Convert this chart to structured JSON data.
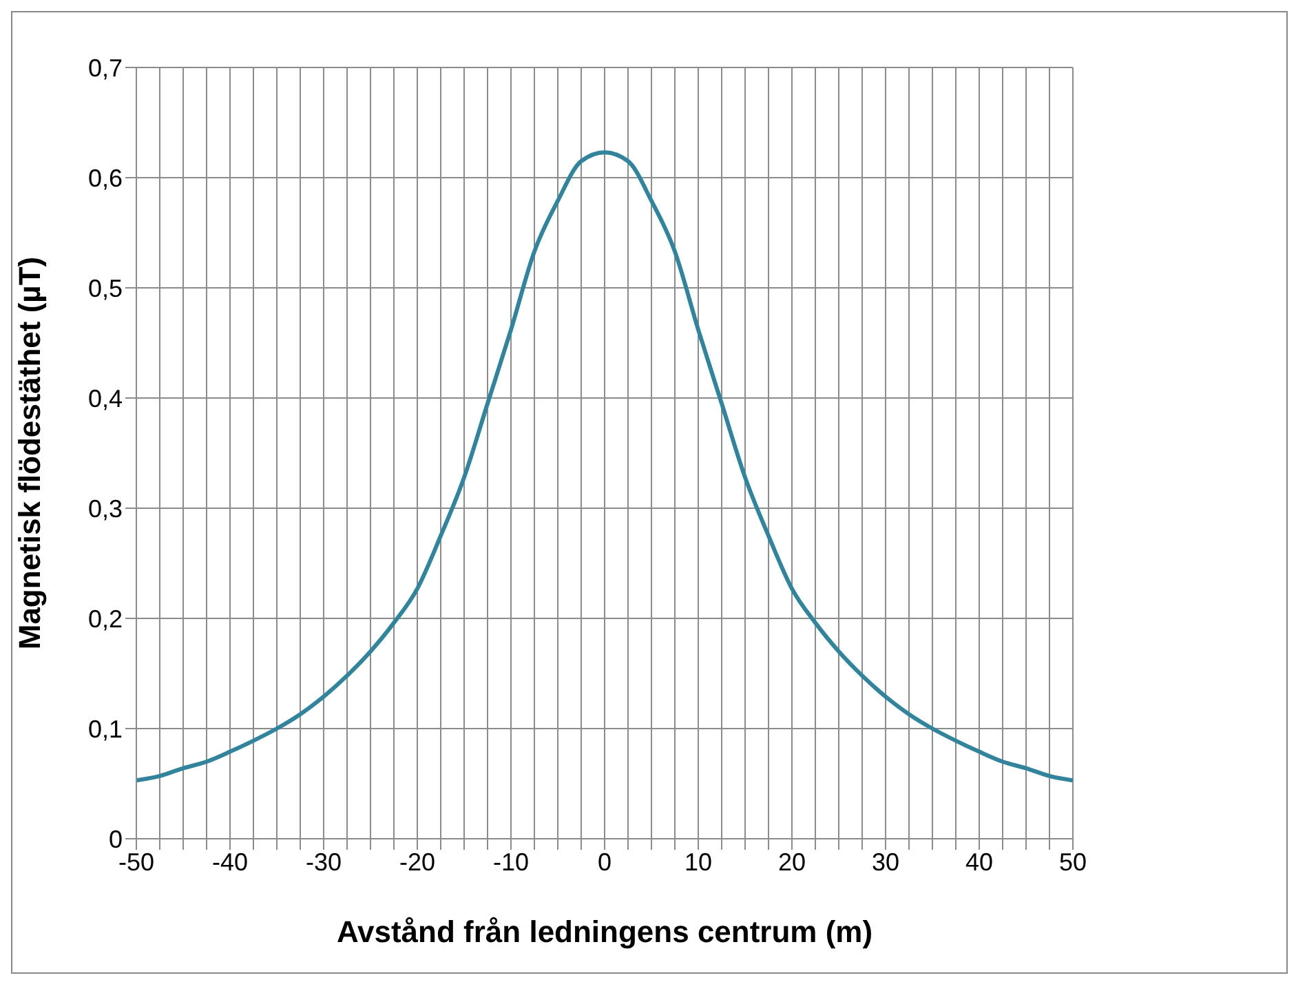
{
  "chart_data": {
    "type": "line",
    "xlabel": "Avstånd från ledningens centrum (m)",
    "ylabel": "Magnetisk flödestäthet (µT)",
    "x": [
      -50,
      -47.5,
      -45,
      -42.5,
      -40,
      -37.5,
      -35,
      -32.5,
      -30,
      -27.5,
      -25,
      -22.5,
      -20,
      -17.5,
      -15,
      -12.5,
      -10,
      -7.5,
      -5,
      -2.5,
      0,
      2.5,
      5,
      7.5,
      10,
      12.5,
      15,
      17.5,
      20,
      22.5,
      25,
      27.5,
      30,
      32.5,
      35,
      37.5,
      40,
      42.5,
      45,
      47.5,
      50
    ],
    "series": [
      {
        "color": "#31849b",
        "values": [
          0.053,
          0.057,
          0.064,
          0.07,
          0.079,
          0.089,
          0.1,
          0.113,
          0.129,
          0.148,
          0.17,
          0.196,
          0.227,
          0.275,
          0.328,
          0.395,
          0.462,
          0.533,
          0.579,
          0.615,
          0.623,
          0.615,
          0.579,
          0.533,
          0.462,
          0.395,
          0.328,
          0.275,
          0.227,
          0.196,
          0.17,
          0.148,
          0.129,
          0.113,
          0.1,
          0.089,
          0.079,
          0.07,
          0.064,
          0.057,
          0.053
        ]
      }
    ],
    "xlim": [
      -50,
      50
    ],
    "xticks": [
      -50,
      {
        "value": -47.5,
        "label": null
      },
      {
        "value": -45,
        "label": null
      },
      {
        "value": -42.5,
        "label": null
      },
      -40,
      {
        "value": -37.5,
        "label": null
      },
      {
        "value": -35,
        "label": null
      },
      {
        "value": -32.5,
        "label": null
      },
      -30,
      {
        "value": -27.5,
        "label": null
      },
      {
        "value": -25,
        "label": null
      },
      {
        "value": -22.5,
        "label": null
      },
      -20,
      {
        "value": -17.5,
        "label": null
      },
      {
        "value": -15,
        "label": null
      },
      {
        "value": -12.5,
        "label": null
      },
      -10,
      {
        "value": -7.5,
        "label": null
      },
      {
        "value": -5,
        "label": null
      },
      {
        "value": -2.5,
        "label": null
      },
      0,
      {
        "value": 2.5,
        "label": null
      },
      {
        "value": 5,
        "label": null
      },
      {
        "value": 7.5,
        "label": null
      },
      10,
      {
        "value": 12.5,
        "label": null
      },
      {
        "value": 15,
        "label": null
      },
      {
        "value": 17.5,
        "label": null
      },
      20,
      {
        "value": 22.5,
        "label": null
      },
      {
        "value": 25,
        "label": null
      },
      {
        "value": 27.5,
        "label": null
      },
      30,
      {
        "value": 32.5,
        "label": null
      },
      {
        "value": 35,
        "label": null
      },
      {
        "value": 37.5,
        "label": null
      },
      40,
      {
        "value": 42.5,
        "label": null
      },
      {
        "value": 45,
        "label": null
      },
      {
        "value": 47.5,
        "label": null
      },
      50
    ],
    "ylim": [
      0,
      0.7
    ],
    "yticks": [
      {
        "value": 0,
        "label": "0"
      },
      {
        "value": 0.1,
        "label": "0,1"
      },
      {
        "value": 0.2,
        "label": "0,2"
      },
      {
        "value": 0.3,
        "label": "0,3"
      },
      {
        "value": 0.4,
        "label": "0,4"
      },
      {
        "value": 0.5,
        "label": "0,5"
      },
      {
        "value": 0.6,
        "label": "0,6"
      },
      {
        "value": 0.7,
        "label": "0,7"
      }
    ],
    "grid": true,
    "legend": false,
    "marker": "none",
    "line_style": "solid"
  }
}
